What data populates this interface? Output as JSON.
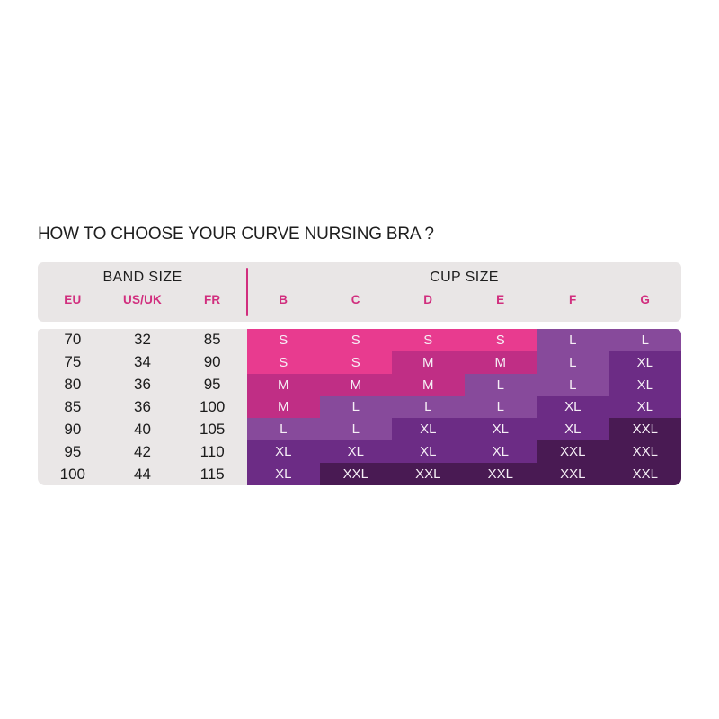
{
  "title": "HOW TO CHOOSE YOUR CURVE NURSING BRA ?",
  "header": {
    "band_size_label": "BAND SIZE",
    "cup_size_label": "CUP SIZE",
    "band_columns": [
      "EU",
      "US/UK",
      "FR"
    ],
    "cup_columns": [
      "B",
      "C",
      "D",
      "E",
      "F",
      "G"
    ]
  },
  "colors": {
    "accent_pink": "#D12E7E",
    "header_bg": "#E9E6E6",
    "panel_bg": "#EAE7E7",
    "text_dark": "#1E1E1E",
    "cell_text": "#F6EFF6"
  },
  "chart_data": {
    "type": "table",
    "title": "HOW TO CHOOSE YOUR CURVE NURSING BRA ?",
    "column_groups": [
      "BAND SIZE",
      "CUP SIZE"
    ],
    "columns": [
      "EU",
      "US/UK",
      "FR",
      "B",
      "C",
      "D",
      "E",
      "F",
      "G"
    ],
    "rows": [
      [
        "70",
        "32",
        "85",
        "S",
        "S",
        "S",
        "S",
        "L",
        "L"
      ],
      [
        "75",
        "34",
        "90",
        "S",
        "S",
        "M",
        "M",
        "L",
        "XL"
      ],
      [
        "80",
        "36",
        "95",
        "M",
        "M",
        "M",
        "L",
        "L",
        "XL"
      ],
      [
        "85",
        "36",
        "100",
        "M",
        "L",
        "L",
        "L",
        "XL",
        "XL"
      ],
      [
        "90",
        "40",
        "105",
        "L",
        "L",
        "XL",
        "XL",
        "XL",
        "XXL"
      ],
      [
        "95",
        "42",
        "110",
        "XL",
        "XL",
        "XL",
        "XL",
        "XXL",
        "XXL"
      ],
      [
        "100",
        "44",
        "115",
        "XL",
        "XXL",
        "XXL",
        "XXL",
        "XXL",
        "XXL"
      ]
    ],
    "legend": {
      "S": "#E83B8F",
      "M": "#C02E85",
      "L": "#874A9B",
      "XL": "#6C2C85",
      "XXL": "#491A53"
    }
  }
}
